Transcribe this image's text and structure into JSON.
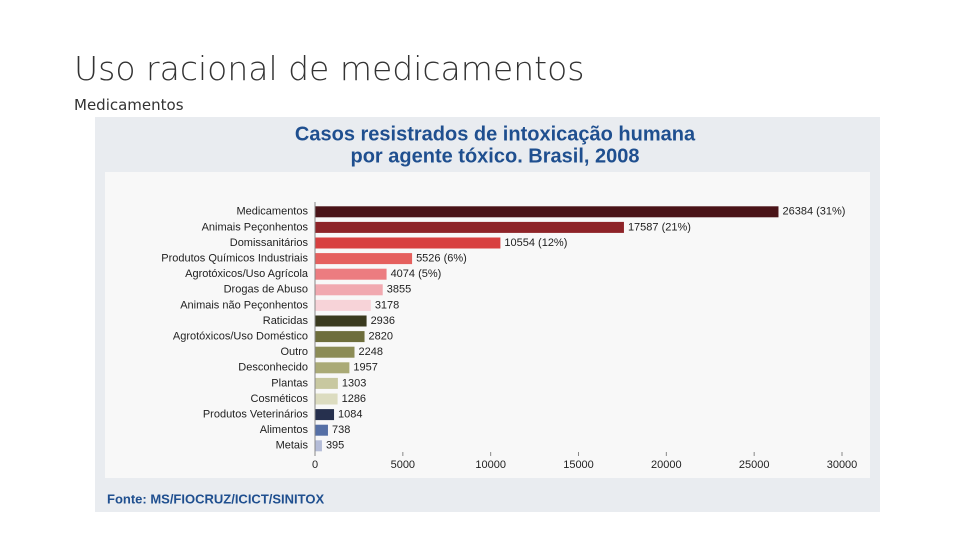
{
  "slide": {
    "title": "Uso racional de medicamentos",
    "subtitle": "Medicamentos"
  },
  "chart_data": {
    "type": "bar",
    "orientation": "horizontal",
    "title": [
      "Casos resistrados de intoxicação humana",
      "por agente tóxico. Brasil, 2008"
    ],
    "categories": [
      "Medicamentos",
      "Animais Peçonhentos",
      "Domissanitários",
      "Produtos Químicos Industriais",
      "Agrotóxicos/Uso Agrícola",
      "Drogas de Abuso",
      "Animais não Peçonhentos",
      "Raticidas",
      "Agrotóxicos/Uso Doméstico",
      "Outro",
      "Desconhecido",
      "Plantas",
      "Cosméticos",
      "Produtos Veterinários",
      "Alimentos",
      "Metais"
    ],
    "values": [
      26384,
      17587,
      10554,
      5526,
      4074,
      3855,
      3178,
      2936,
      2820,
      2248,
      1957,
      1303,
      1286,
      1084,
      738,
      395
    ],
    "value_labels": [
      "26384 (31%)",
      "17587 (21%)",
      "10554 (12%)",
      "5526 (6%)",
      "4074 (5%)",
      "3855",
      "3178",
      "2936",
      "2820",
      "2248",
      "1957",
      "1303",
      "1286",
      "1084",
      "738",
      "395"
    ],
    "colors": [
      "#4a1418",
      "#8e2328",
      "#d84040",
      "#e5605e",
      "#ec7c80",
      "#f1a9b0",
      "#f7d3d8",
      "#3a3a1e",
      "#6e6e3c",
      "#8c8c56",
      "#aaaa76",
      "#c8c8a0",
      "#dcdcc0",
      "#26304e",
      "#5670a6",
      "#b4bcd8"
    ],
    "xlim": [
      0,
      30000
    ],
    "xticks": [
      0,
      5000,
      10000,
      15000,
      20000,
      25000,
      30000
    ],
    "source": "Fonte: MS/FIOCRUZ/ICICT/SINITOX"
  }
}
